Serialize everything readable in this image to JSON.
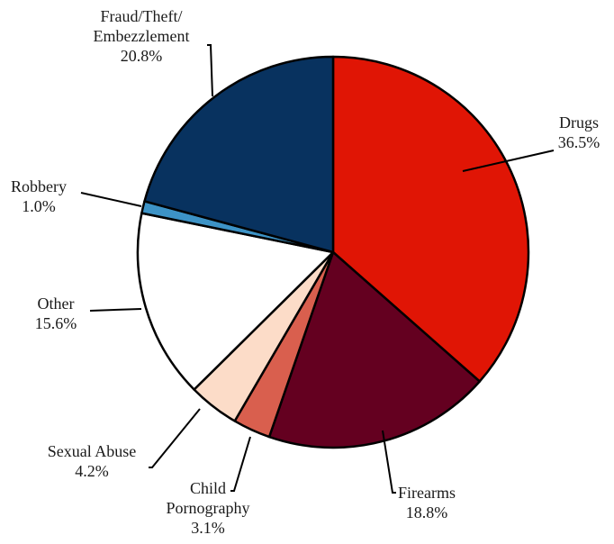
{
  "chart_data": {
    "type": "pie",
    "title": "",
    "slices": [
      {
        "label_lines": [
          "Drugs"
        ],
        "value_text": "36.5%",
        "value": 36.5,
        "color": "#e01505"
      },
      {
        "label_lines": [
          "Firearms"
        ],
        "value_text": "18.8%",
        "value": 18.8,
        "color": "#640020"
      },
      {
        "label_lines": [
          "Child",
          "Pornography"
        ],
        "value_text": "3.1%",
        "value": 3.1,
        "color": "#d95f4e"
      },
      {
        "label_lines": [
          "Sexual Abuse"
        ],
        "value_text": "4.2%",
        "value": 4.2,
        "color": "#fcdcc8"
      },
      {
        "label_lines": [
          "Other"
        ],
        "value_text": "15.6%",
        "value": 15.6,
        "color": "#ffffff"
      },
      {
        "label_lines": [
          "Robbery"
        ],
        "value_text": "1.0%",
        "value": 1.0,
        "color": "#3d93c6"
      },
      {
        "label_lines": [
          "Fraud/Theft/",
          "Embezzlement"
        ],
        "value_text": "20.8%",
        "value": 20.8,
        "color": "#08325f"
      }
    ]
  }
}
